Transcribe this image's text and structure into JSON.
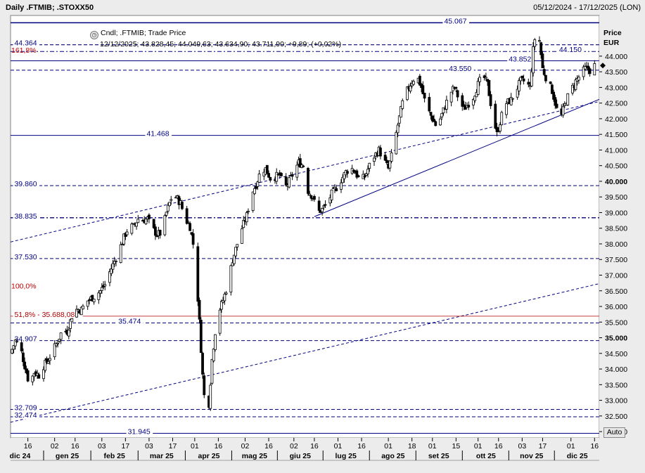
{
  "header": {
    "title": "Daily .FTMIB; .STOXX50",
    "date_range": "05/12/2024 - 17/12/2025 (LON)"
  },
  "legend": {
    "icon": "cndl-icon",
    "series_label": "Cndl; .FTMIB; Trade Price",
    "ohlc_line": "12/12/2025; 43.828,45; 44.049,63; 43.634,90; 43.711,90; +9,89; (+0,02%)"
  },
  "axis": {
    "price_label": "Price",
    "currency": "EUR",
    "auto_button": "Auto"
  },
  "chart_data": {
    "type": "candlestick",
    "title": "Daily .FTMIB; .STOXX50",
    "ylabel": "Price EUR",
    "ylim": [
      31800,
      45300
    ],
    "y_ticks": [
      {
        "value": 32000,
        "label": "32.000"
      },
      {
        "value": 32500,
        "label": "32.500"
      },
      {
        "value": 33000,
        "label": "33.000"
      },
      {
        "value": 33500,
        "label": "33.500"
      },
      {
        "value": 34000,
        "label": "34.000"
      },
      {
        "value": 34500,
        "label": "34.500"
      },
      {
        "value": 35000,
        "label": "35.000",
        "bold": true
      },
      {
        "value": 35500,
        "label": "35.500"
      },
      {
        "value": 36000,
        "label": "36.000"
      },
      {
        "value": 36500,
        "label": "36.500"
      },
      {
        "value": 37000,
        "label": "37.000"
      },
      {
        "value": 37500,
        "label": "37.500"
      },
      {
        "value": 38000,
        "label": "38.000"
      },
      {
        "value": 38500,
        "label": "38.500"
      },
      {
        "value": 39000,
        "label": "39.000"
      },
      {
        "value": 39500,
        "label": "39.500"
      },
      {
        "value": 40000,
        "label": "40.000",
        "bold": true
      },
      {
        "value": 40500,
        "label": "40.500"
      },
      {
        "value": 41000,
        "label": "41.000"
      },
      {
        "value": 41500,
        "label": "41.500"
      },
      {
        "value": 42000,
        "label": "42.000"
      },
      {
        "value": 42500,
        "label": "42.500"
      },
      {
        "value": 43000,
        "label": "43.000"
      },
      {
        "value": 43500,
        "label": "43.500"
      },
      {
        "value": 44000,
        "label": "44.000"
      }
    ],
    "x_ticks": [
      {
        "day": 11,
        "label": "16"
      },
      {
        "day": 28,
        "label": "02"
      },
      {
        "day": 41,
        "label": "16"
      },
      {
        "day": 58,
        "label": "03"
      },
      {
        "day": 73,
        "label": "17"
      },
      {
        "day": 88,
        "label": "03"
      },
      {
        "day": 103,
        "label": "17"
      },
      {
        "day": 117,
        "label": "01"
      },
      {
        "day": 132,
        "label": "16"
      },
      {
        "day": 149,
        "label": "02"
      },
      {
        "day": 164,
        "label": "16"
      },
      {
        "day": 180,
        "label": "02"
      },
      {
        "day": 193,
        "label": "16"
      },
      {
        "day": 208,
        "label": "01"
      },
      {
        "day": 223,
        "label": "16"
      },
      {
        "day": 240,
        "label": "01"
      },
      {
        "day": 255,
        "label": "18"
      },
      {
        "day": 268,
        "label": "01"
      },
      {
        "day": 283,
        "label": "15"
      },
      {
        "day": 297,
        "label": "01"
      },
      {
        "day": 310,
        "label": "16"
      },
      {
        "day": 325,
        "label": "03"
      },
      {
        "day": 338,
        "label": "17"
      },
      {
        "day": 356,
        "label": "01"
      },
      {
        "day": 371,
        "label": "16"
      }
    ],
    "month_labels": [
      {
        "day": 6,
        "label": "dic 24"
      },
      {
        "day": 36,
        "label": "gen 25"
      },
      {
        "day": 66,
        "label": "feb 25"
      },
      {
        "day": 96,
        "label": "mar 25"
      },
      {
        "day": 126,
        "label": "apr 25"
      },
      {
        "day": 155,
        "label": "mag 25"
      },
      {
        "day": 184,
        "label": "giu 25"
      },
      {
        "day": 213,
        "label": "lug 25"
      },
      {
        "day": 243,
        "label": "ago 25"
      },
      {
        "day": 272,
        "label": "set 25"
      },
      {
        "day": 302,
        "label": "ott 25"
      },
      {
        "day": 331,
        "label": "nov 25"
      },
      {
        "day": 360,
        "label": "dic 25"
      }
    ],
    "x_domain": [
      0,
      374
    ],
    "close_path": [
      [
        0,
        34500
      ],
      [
        3,
        34900
      ],
      [
        6,
        34750
      ],
      [
        9,
        34100
      ],
      [
        12,
        33500
      ],
      [
        15,
        33900
      ],
      [
        18,
        33800
      ],
      [
        21,
        34100
      ],
      [
        24,
        34300
      ],
      [
        27,
        34600
      ],
      [
        30,
        34900
      ],
      [
        33,
        35250
      ],
      [
        36,
        35200
      ],
      [
        39,
        35700
      ],
      [
        42,
        35900
      ],
      [
        45,
        35900
      ],
      [
        48,
        36150
      ],
      [
        51,
        36250
      ],
      [
        54,
        36350
      ],
      [
        57,
        36500
      ],
      [
        60,
        36700
      ],
      [
        63,
        37100
      ],
      [
        66,
        37450
      ],
      [
        69,
        37800
      ],
      [
        72,
        38200
      ],
      [
        75,
        38550
      ],
      [
        78,
        38550
      ],
      [
        81,
        38800
      ],
      [
        84,
        38750
      ],
      [
        87,
        38800
      ],
      [
        90,
        38500
      ],
      [
        93,
        38300
      ],
      [
        96,
        38350
      ],
      [
        99,
        39000
      ],
      [
        102,
        39450
      ],
      [
        105,
        39500
      ],
      [
        108,
        39300
      ],
      [
        111,
        38800
      ],
      [
        114,
        38550
      ],
      [
        116,
        38000
      ],
      [
        118,
        37000
      ],
      [
        120,
        35500
      ],
      [
        122,
        33800
      ],
      [
        124,
        32500
      ],
      [
        126,
        32900
      ],
      [
        128,
        34300
      ],
      [
        130,
        35200
      ],
      [
        132,
        35800
      ],
      [
        135,
        36200
      ],
      [
        138,
        36700
      ],
      [
        141,
        37500
      ],
      [
        144,
        38000
      ],
      [
        147,
        38500
      ],
      [
        150,
        38900
      ],
      [
        153,
        39600
      ],
      [
        156,
        39900
      ],
      [
        159,
        40350
      ],
      [
        162,
        40400
      ],
      [
        165,
        40100
      ],
      [
        168,
        40150
      ],
      [
        171,
        40200
      ],
      [
        174,
        39750
      ],
      [
        177,
        40000
      ],
      [
        180,
        40300
      ],
      [
        183,
        40600
      ],
      [
        186,
        40500
      ],
      [
        189,
        39700
      ],
      [
        192,
        39500
      ],
      [
        195,
        39000
      ],
      [
        198,
        39100
      ],
      [
        201,
        39300
      ],
      [
        204,
        39600
      ],
      [
        207,
        39800
      ],
      [
        210,
        40050
      ],
      [
        213,
        40300
      ],
      [
        216,
        40450
      ],
      [
        219,
        40300
      ],
      [
        222,
        40000
      ],
      [
        225,
        40150
      ],
      [
        228,
        40500
      ],
      [
        231,
        40800
      ],
      [
        234,
        41000
      ],
      [
        237,
        40700
      ],
      [
        240,
        40400
      ],
      [
        243,
        41000
      ],
      [
        246,
        41800
      ],
      [
        249,
        42500
      ],
      [
        252,
        42900
      ],
      [
        255,
        43200
      ],
      [
        258,
        43400
      ],
      [
        261,
        43000
      ],
      [
        264,
        42400
      ],
      [
        267,
        42100
      ],
      [
        270,
        41800
      ],
      [
        273,
        42000
      ],
      [
        276,
        42400
      ],
      [
        279,
        42800
      ],
      [
        282,
        43000
      ],
      [
        285,
        42600
      ],
      [
        288,
        42300
      ],
      [
        291,
        42500
      ],
      [
        294,
        42700
      ],
      [
        297,
        43100
      ],
      [
        300,
        43400
      ],
      [
        303,
        43100
      ],
      [
        306,
        42200
      ],
      [
        309,
        41500
      ],
      [
        312,
        42100
      ],
      [
        315,
        42500
      ],
      [
        318,
        42600
      ],
      [
        321,
        42900
      ],
      [
        324,
        43200
      ],
      [
        327,
        43200
      ],
      [
        330,
        43000
      ],
      [
        332,
        44200
      ],
      [
        334,
        44900
      ],
      [
        336,
        44500
      ],
      [
        338,
        43600
      ],
      [
        341,
        43200
      ],
      [
        344,
        42900
      ],
      [
        347,
        42300
      ],
      [
        350,
        42100
      ],
      [
        353,
        42600
      ],
      [
        356,
        42900
      ],
      [
        359,
        43200
      ],
      [
        362,
        43400
      ],
      [
        365,
        43600
      ],
      [
        368,
        43550
      ],
      [
        371,
        43700
      ]
    ],
    "horizontal_lines": [
      {
        "value": 45067,
        "label": "45.067",
        "label_day": 275,
        "style": "solid",
        "color": "#000080",
        "width": 1.5
      },
      {
        "value": 44364,
        "label": "44.364",
        "label_day": 2,
        "style": "dashed",
        "color": "#000080",
        "width": 1.2
      },
      {
        "value": 44150,
        "label": "44.150",
        "label_day": 348,
        "style": "dashdot",
        "color": "#000080",
        "width": 1
      },
      {
        "value": 43852,
        "label": "43.852",
        "label_day": 316,
        "style": "solid",
        "color": "#000080",
        "width": 1
      },
      {
        "value": 43550,
        "label": "43.550",
        "label_day": 278,
        "style": "dashed",
        "color": "#000080",
        "width": 1
      },
      {
        "value": 41468,
        "label": "41.468",
        "label_day": 86,
        "style": "solid",
        "color": "#000080",
        "width": 1
      },
      {
        "value": 39860,
        "label": "39.860",
        "label_day": 2,
        "style": "dashed",
        "color": "#000080",
        "width": 1
      },
      {
        "value": 38835,
        "label": "38.835",
        "label_day": 2,
        "style": "dashdot",
        "color": "#000080",
        "width": 1.3
      },
      {
        "value": 37530,
        "label": "37.530",
        "label_day": 2,
        "style": "dashed",
        "color": "#000080",
        "width": 1
      },
      {
        "value": 35688,
        "label": "51,8% - 35.688,08",
        "label_day": 2,
        "style": "solid",
        "color": "#b00000",
        "width": 0.8
      },
      {
        "value": 35474,
        "label": "35.474",
        "label_day": 68,
        "style": "dashed",
        "color": "#000080",
        "width": 1
      },
      {
        "value": 34907,
        "label": "34.907",
        "label_day": 2,
        "style": "dashed",
        "color": "#000080",
        "width": 1
      },
      {
        "value": 32709,
        "label": "32.709",
        "label_day": 2,
        "style": "dashed",
        "color": "#000080",
        "width": 1
      },
      {
        "value": 32474,
        "label": "32.474",
        "label_day": 2,
        "style": "dashed",
        "color": "#000080",
        "width": 1
      },
      {
        "value": 31945,
        "label": "31.945",
        "label_day": 74,
        "style": "solid",
        "color": "#000080",
        "width": 1
      }
    ],
    "fib_labels": [
      {
        "value": 44200,
        "label": "161,8%"
      },
      {
        "value": 36660,
        "label": "100,0%"
      }
    ],
    "trendlines": [
      {
        "from": [
          0,
          38060
        ],
        "to": [
          374,
          42550
        ],
        "style": "dashed"
      },
      {
        "from": [
          193,
          38870
        ],
        "to": [
          374,
          42620
        ],
        "style": "solid"
      },
      {
        "from": [
          0,
          32300
        ],
        "to": [
          374,
          36730
        ],
        "style": "dashed"
      }
    ]
  }
}
